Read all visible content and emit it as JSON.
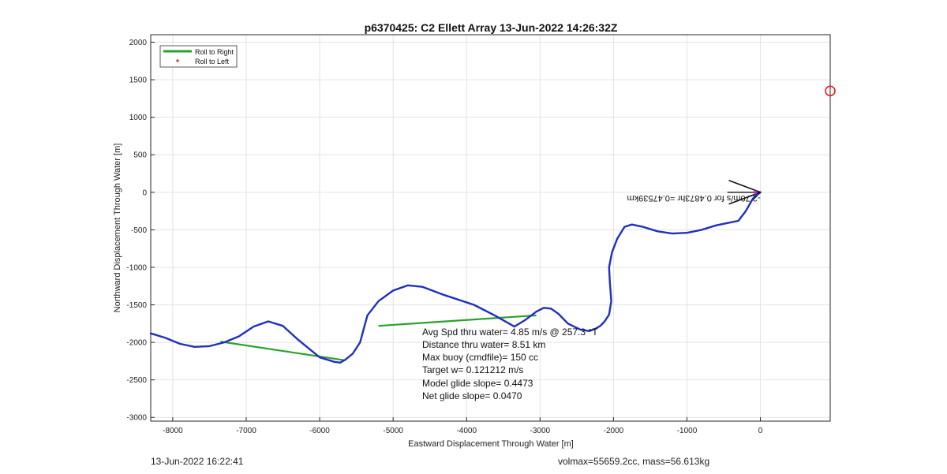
{
  "chart_data": {
    "type": "line",
    "title": "p6370425: C2 Ellett Array 13-Jun-2022 14:26:32Z",
    "xlabel": "Eastward Displacement Through Water [m]",
    "ylabel": "Northward Displacement Through Water [m]",
    "xlim": [
      -8300,
      950
    ],
    "ylim": [
      -3050,
      2100
    ],
    "xticks": [
      -8000,
      -7000,
      -6000,
      -5000,
      -4000,
      -3000,
      -2000,
      -1000,
      0
    ],
    "yticks": [
      -3000,
      -2500,
      -2000,
      -1500,
      -1000,
      -500,
      0,
      500,
      1000,
      1500,
      2000
    ],
    "grid": true,
    "legend": {
      "placement": "top-left",
      "entries": [
        {
          "label": "Roll to Right",
          "color": "#2ca02c",
          "style": "line"
        },
        {
          "label": "Roll to Left",
          "color": "#e02020",
          "style": "dot"
        }
      ]
    },
    "series": [
      {
        "color": "#1f2fbf",
        "x": [
          0,
          -100,
          -200,
          -300,
          -450,
          -600,
          -800,
          -1000,
          -1200,
          -1400,
          -1600,
          -1750,
          -1850,
          -1950,
          -2020,
          -2060,
          -2050,
          -2030,
          -2060,
          -2120,
          -2180,
          -2250,
          -2330,
          -2450,
          -2620,
          -2750,
          -2850,
          -2950,
          -3050,
          -3200,
          -3350,
          -3600,
          -3900,
          -4300,
          -4600,
          -4800,
          -5000,
          -5200,
          -5350,
          -5400,
          -5450,
          -5550,
          -5650,
          -5720,
          -5800,
          -6000,
          -6300,
          -6500,
          -6700,
          -6900,
          -7100,
          -7300,
          -7500,
          -7700,
          -7900,
          -8100,
          -8300
        ],
        "y": [
          0,
          -80,
          -250,
          -380,
          -410,
          -440,
          -500,
          -540,
          -550,
          -520,
          -460,
          -430,
          -460,
          -620,
          -800,
          -1000,
          -1200,
          -1450,
          -1630,
          -1720,
          -1780,
          -1820,
          -1850,
          -1830,
          -1750,
          -1620,
          -1550,
          -1540,
          -1590,
          -1700,
          -1790,
          -1650,
          -1500,
          -1370,
          -1260,
          -1240,
          -1310,
          -1450,
          -1640,
          -1820,
          -2000,
          -2150,
          -2230,
          -2270,
          -2260,
          -2200,
          -1960,
          -1780,
          -1720,
          -1790,
          -1920,
          -2000,
          -2050,
          -2060,
          -2020,
          -1940,
          -1880
        ]
      },
      {
        "color": "#2ca02c",
        "segments": [
          {
            "x": [
              -7350,
              -5650
            ],
            "y": [
              -1990,
              -2240
            ]
          },
          {
            "x": [
              -5200,
              -3050
            ],
            "y": [
              -1780,
              -1640
            ]
          }
        ]
      },
      {
        "color": "#e02020",
        "marker": "open-circle",
        "x": [
          950
        ],
        "y": [
          1350
        ]
      }
    ],
    "arrow": {
      "x": [
        -450,
        0
      ],
      "y": [
        0,
        0
      ],
      "label_mirrored": "-2.70m/s for 0.4873hr =0.47539km"
    },
    "annotations": [
      "Avg Spd thru water=  4.85 m/s @ 257.3 °T",
      "Distance thru water=  8.51 km",
      "Max buoy (cmdfile)= 150 cc",
      "Target w= 0.121212 m/s",
      "Model glide slope= 0.4473",
      "Net glide slope= 0.0470"
    ]
  },
  "footer": {
    "left": "13-Jun-2022 16:22:41",
    "right": "volmax=55659.2cc, mass=56.613kg"
  }
}
